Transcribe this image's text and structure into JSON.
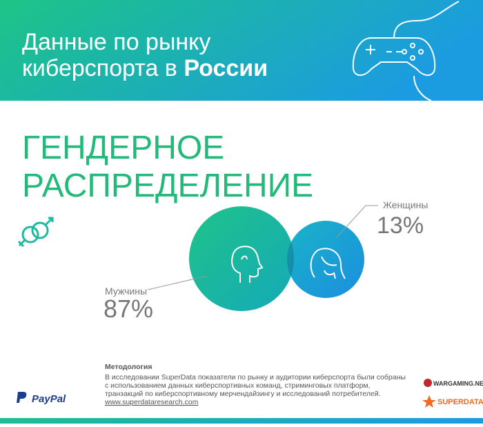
{
  "header": {
    "title_line1": "Данные по рынку",
    "title_line2": "киберспорта в",
    "title_bold": "России"
  },
  "section": {
    "title_line1": "ГЕНДЕРНОЕ",
    "title_line2": "РАСПРЕДЕЛЕНИЕ"
  },
  "groups": [
    {
      "label": "Мужчины",
      "value": "87%"
    },
    {
      "label": "Женщины",
      "value": "13%"
    }
  ],
  "footer": {
    "heading": "Методология",
    "lines": [
      "В исследовании SuperData показатели по рынку и аудитории киберспорта были собраны",
      "с использованием данных киберспортивных команд, стриминговых платформ,",
      "транзакций по киберспортивному мерчендайзингу и исследований потребителей."
    ],
    "link": "www.superdataresearch.com",
    "logos": [
      "PayPal",
      "WARGAMING.NET",
      "SUPERDATA"
    ]
  }
}
